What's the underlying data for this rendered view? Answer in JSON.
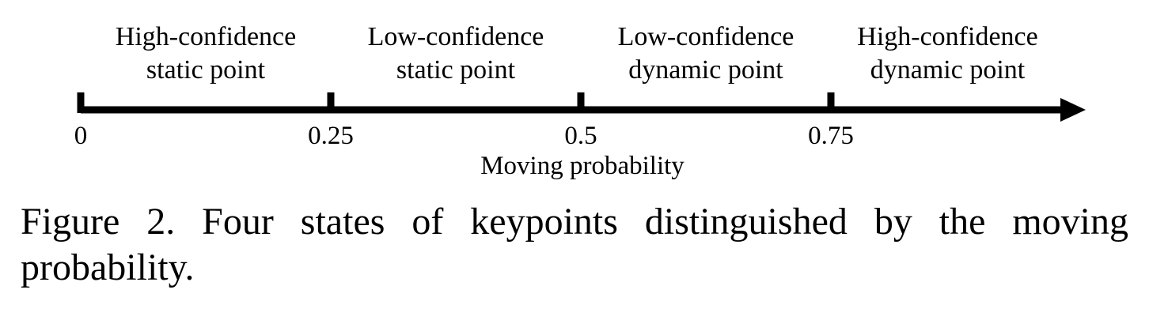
{
  "regions": [
    {
      "line1": "High-confidence",
      "line2": "static point",
      "from": 0,
      "to": 0.25
    },
    {
      "line1": "Low-confidence",
      "line2": "static point",
      "from": 0.25,
      "to": 0.5
    },
    {
      "line1": "Low-confidence",
      "line2": "dynamic point",
      "from": 0.5,
      "to": 0.75
    },
    {
      "line1": "High-confidence",
      "line2": "dynamic point",
      "from": 0.75,
      "to": 1
    }
  ],
  "ticks": [
    {
      "value": 0,
      "label": "0"
    },
    {
      "value": 0.25,
      "label": "0.25"
    },
    {
      "value": 0.5,
      "label": "0.5"
    },
    {
      "value": 0.75,
      "label": "0.75"
    }
  ],
  "axis_title": "Moving probability",
  "caption": "Figure 2. Four states of keypoints distinguished by the moving probability."
}
